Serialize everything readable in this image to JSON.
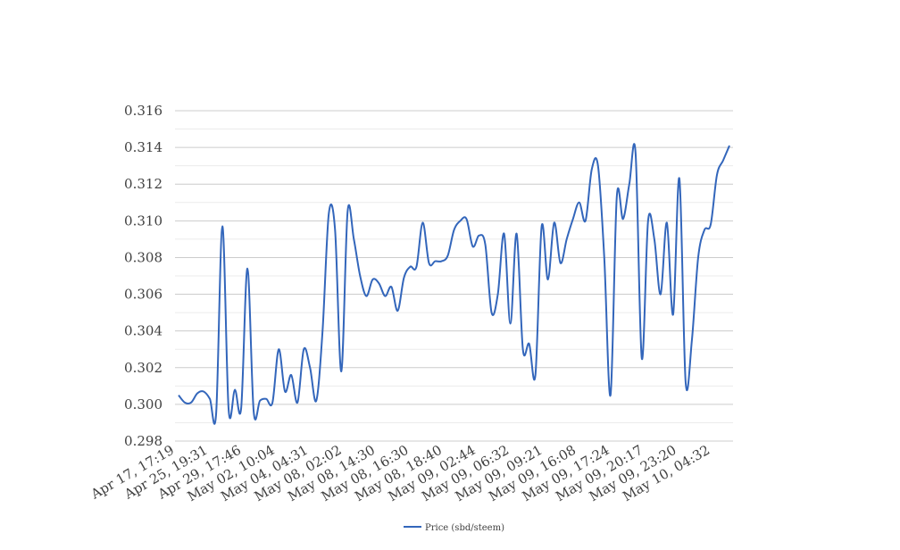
{
  "chart_data": {
    "type": "line",
    "title": "",
    "xlabel": "",
    "ylabel": "",
    "ylim": [
      0.298,
      0.316
    ],
    "y_ticks": [
      "0.298",
      "0.300",
      "0.302",
      "0.304",
      "0.306",
      "0.308",
      "0.310",
      "0.312",
      "0.314",
      "0.316"
    ],
    "x_ticks": [
      "Apr 17, 17:19",
      "Apr 25, 19:31",
      "Apr 29, 17:46",
      "May 02, 10:04",
      "May 04, 04:31",
      "May 08, 02:02",
      "May 08, 14:30",
      "May 08, 16:30",
      "May 08, 18:40",
      "May 09, 02:44",
      "May 09, 06:32",
      "May 09, 09:21",
      "May 09, 16:08",
      "May 09, 17:24",
      "May 09, 20:17",
      "May 09, 23:20",
      "May 10, 04:32"
    ],
    "grid": true,
    "legend_position": "bottom",
    "series": [
      {
        "name": "Price (sbd/steem)",
        "color": "#3366bb",
        "values": [
          0.3005,
          0.3001,
          0.3001,
          0.3006,
          0.3007,
          0.3003,
          0.2995,
          0.3097,
          0.2997,
          0.3008,
          0.2998,
          0.3074,
          0.2996,
          0.3002,
          0.3003,
          0.3001,
          0.303,
          0.3007,
          0.3016,
          0.3001,
          0.303,
          0.302,
          0.3002,
          0.304,
          0.3104,
          0.3095,
          0.3018,
          0.3105,
          0.309,
          0.307,
          0.3059,
          0.3068,
          0.3066,
          0.3059,
          0.3064,
          0.3051,
          0.3069,
          0.3075,
          0.3075,
          0.3099,
          0.3077,
          0.3078,
          0.3078,
          0.3081,
          0.3095,
          0.31,
          0.3101,
          0.3086,
          0.3092,
          0.3087,
          0.305,
          0.306,
          0.3093,
          0.3044,
          0.3093,
          0.303,
          0.3033,
          0.3016,
          0.3097,
          0.3068,
          0.3099,
          0.3077,
          0.309,
          0.3101,
          0.311,
          0.31,
          0.3128,
          0.313,
          0.308,
          0.3005,
          0.3113,
          0.3101,
          0.312,
          0.3137,
          0.3025,
          0.31,
          0.309,
          0.306,
          0.3099,
          0.3049,
          0.3123,
          0.3012,
          0.3035,
          0.308,
          0.3095,
          0.3098,
          0.3125,
          0.3133,
          0.3141
        ]
      }
    ]
  }
}
